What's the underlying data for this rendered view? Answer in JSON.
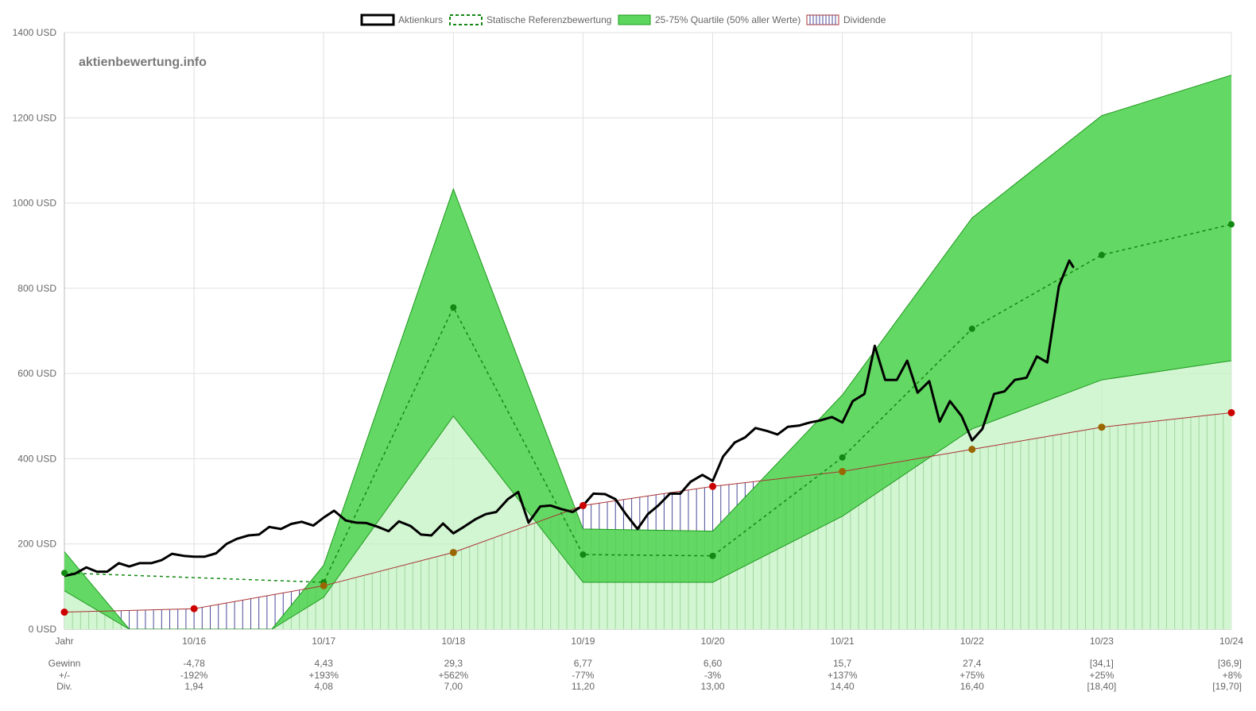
{
  "chart_data": {
    "type": "line",
    "watermark": "aktienbewertung.info",
    "y_axis": {
      "min": 0,
      "max": 1400,
      "step": 200,
      "unit": " USD"
    },
    "x_labels": [
      "Jahr",
      "10/16",
      "10/17",
      "10/18",
      "10/19",
      "10/20",
      "10/21",
      "10/22",
      "10/23",
      "10/24"
    ],
    "x_index": [
      2015,
      2016,
      2017,
      2018,
      2019,
      2020,
      2021,
      2022,
      2023,
      2024
    ],
    "legend": [
      {
        "name": "Aktienkurs",
        "style": "line",
        "color": "#000000"
      },
      {
        "name": "Statische Referenzbewertung",
        "style": "dashed",
        "color": "#008800"
      },
      {
        "name": "25-75% Quartile (50% aller Werte)",
        "style": "fill",
        "color": "#5cd65c"
      },
      {
        "name": "Dividende",
        "style": "hatch",
        "color": "#cc4444"
      }
    ],
    "colors": {
      "price": "#000000",
      "reference": "#118811",
      "quartile_fill": "#5cd65c",
      "quartile_stroke": "#1f9a1f",
      "inner_fill": "#c3f1c3",
      "dividend_line": "#aa3333",
      "dividend_dot": "#cc0000",
      "hatch_blue": "#4a4a99",
      "hatch_green": "#3a8a3a",
      "grid": "#e0e0e0"
    },
    "series": [
      {
        "name": "Aktienkurs",
        "points": [
          [
            2015.0,
            125
          ],
          [
            2015.08,
            130
          ],
          [
            2015.17,
            145
          ],
          [
            2015.25,
            135
          ],
          [
            2015.33,
            135
          ],
          [
            2015.42,
            155
          ],
          [
            2015.5,
            147
          ],
          [
            2015.58,
            155
          ],
          [
            2015.67,
            155
          ],
          [
            2015.75,
            162
          ],
          [
            2015.83,
            177
          ],
          [
            2015.92,
            172
          ],
          [
            2016.0,
            170
          ],
          [
            2016.08,
            170
          ],
          [
            2016.17,
            178
          ],
          [
            2016.25,
            200
          ],
          [
            2016.33,
            212
          ],
          [
            2016.42,
            220
          ],
          [
            2016.5,
            222
          ],
          [
            2016.58,
            240
          ],
          [
            2016.67,
            235
          ],
          [
            2016.75,
            247
          ],
          [
            2016.83,
            252
          ],
          [
            2016.92,
            243
          ],
          [
            2017.0,
            262
          ],
          [
            2017.08,
            278
          ],
          [
            2017.17,
            255
          ],
          [
            2017.25,
            250
          ],
          [
            2017.33,
            249
          ],
          [
            2017.42,
            240
          ],
          [
            2017.5,
            230
          ],
          [
            2017.58,
            253
          ],
          [
            2017.67,
            242
          ],
          [
            2017.75,
            222
          ],
          [
            2017.83,
            220
          ],
          [
            2017.92,
            248
          ],
          [
            2018.0,
            225
          ],
          [
            2018.08,
            240
          ],
          [
            2018.17,
            258
          ],
          [
            2018.25,
            270
          ],
          [
            2018.33,
            275
          ],
          [
            2018.42,
            305
          ],
          [
            2018.5,
            322
          ],
          [
            2018.58,
            250
          ],
          [
            2018.67,
            288
          ],
          [
            2018.75,
            290
          ],
          [
            2018.83,
            282
          ],
          [
            2018.92,
            275
          ],
          [
            2019.0,
            290
          ],
          [
            2019.08,
            318
          ],
          [
            2019.17,
            317
          ],
          [
            2019.25,
            305
          ],
          [
            2019.33,
            270
          ],
          [
            2019.42,
            235
          ],
          [
            2019.5,
            270
          ],
          [
            2019.58,
            290
          ],
          [
            2019.67,
            318
          ],
          [
            2019.75,
            318
          ],
          [
            2019.83,
            346
          ],
          [
            2019.92,
            362
          ],
          [
            2020.0,
            348
          ],
          [
            2020.08,
            405
          ],
          [
            2020.17,
            438
          ],
          [
            2020.25,
            450
          ],
          [
            2020.33,
            472
          ],
          [
            2020.42,
            465
          ],
          [
            2020.5,
            457
          ],
          [
            2020.58,
            475
          ],
          [
            2020.67,
            478
          ],
          [
            2020.75,
            485
          ],
          [
            2020.83,
            490
          ],
          [
            2020.92,
            498
          ],
          [
            2021.0,
            485
          ],
          [
            2021.08,
            535
          ],
          [
            2021.17,
            552
          ],
          [
            2021.25,
            665
          ],
          [
            2021.33,
            585
          ],
          [
            2021.42,
            585
          ],
          [
            2021.5,
            630
          ],
          [
            2021.58,
            555
          ],
          [
            2021.67,
            582
          ],
          [
            2021.75,
            487
          ],
          [
            2021.83,
            535
          ],
          [
            2021.92,
            500
          ],
          [
            2022.0,
            443
          ],
          [
            2022.08,
            470
          ],
          [
            2022.17,
            552
          ],
          [
            2022.25,
            558
          ],
          [
            2022.33,
            585
          ],
          [
            2022.42,
            590
          ],
          [
            2022.5,
            640
          ],
          [
            2022.58,
            626
          ],
          [
            2022.67,
            805
          ],
          [
            2022.75,
            865
          ],
          [
            2022.78,
            850
          ]
        ]
      },
      {
        "name": "Statische Referenzbewertung",
        "points": [
          [
            2015,
            132
          ],
          [
            2017,
            110
          ],
          [
            2018,
            755
          ],
          [
            2019,
            175
          ],
          [
            2020,
            172
          ],
          [
            2021,
            403
          ],
          [
            2022,
            705
          ],
          [
            2023,
            878
          ],
          [
            2024,
            950
          ]
        ]
      },
      {
        "name": "25-75% Quartile upper",
        "points": [
          [
            2015,
            182
          ],
          [
            2015.5,
            0
          ],
          [
            2016.6,
            0
          ],
          [
            2017,
            150
          ],
          [
            2018,
            1033
          ],
          [
            2019,
            235
          ],
          [
            2020,
            230
          ],
          [
            2021,
            550
          ],
          [
            2022,
            965
          ],
          [
            2023,
            1205
          ],
          [
            2024,
            1300
          ]
        ]
      },
      {
        "name": "25-75% Quartile lower",
        "points": [
          [
            2015,
            90
          ],
          [
            2015.5,
            0
          ],
          [
            2016.6,
            0
          ],
          [
            2017,
            75
          ],
          [
            2018,
            500
          ],
          [
            2019,
            110
          ],
          [
            2020,
            110
          ],
          [
            2021,
            265
          ],
          [
            2022,
            470
          ],
          [
            2023,
            585
          ],
          [
            2024,
            630
          ]
        ]
      },
      {
        "name": "Dividende",
        "points": [
          [
            2015,
            40
          ],
          [
            2016,
            48
          ],
          [
            2017,
            102
          ],
          [
            2018,
            180
          ],
          [
            2019,
            290
          ],
          [
            2020,
            335
          ],
          [
            2021,
            370
          ],
          [
            2022,
            422
          ],
          [
            2023,
            474
          ],
          [
            2024,
            508
          ]
        ]
      }
    ],
    "dot_colors": {
      "reference_dots": "#118811",
      "dividend_dots": [
        "#cc0000",
        "#cc0000",
        "#996600",
        "#996600",
        "#cc0000",
        "#cc0000",
        "#996600",
        "#996600",
        "#996600",
        "#cc0000"
      ]
    },
    "footer": {
      "row_labels": [
        "Gewinn",
        "+/-",
        "Div."
      ],
      "columns": [
        {
          "x": 2016,
          "values": [
            "-4,78",
            "-192%",
            "1,94"
          ]
        },
        {
          "x": 2017,
          "values": [
            "4,43",
            "+193%",
            "4,08"
          ]
        },
        {
          "x": 2018,
          "values": [
            "29,3",
            "+562%",
            "7,00"
          ]
        },
        {
          "x": 2019,
          "values": [
            "6,77",
            "-77%",
            "11,20"
          ]
        },
        {
          "x": 2020,
          "values": [
            "6,60",
            "-3%",
            "13,00"
          ]
        },
        {
          "x": 2021,
          "values": [
            "15,7",
            "+137%",
            "14,40"
          ]
        },
        {
          "x": 2022,
          "values": [
            "27,4",
            "+75%",
            "16,40"
          ]
        },
        {
          "x": 2023,
          "values": [
            "[34,1]",
            "+25%",
            "[18,40]"
          ]
        },
        {
          "x": 2024,
          "values": [
            "[36,9]",
            "+8%",
            "[19,70]"
          ]
        }
      ]
    }
  }
}
